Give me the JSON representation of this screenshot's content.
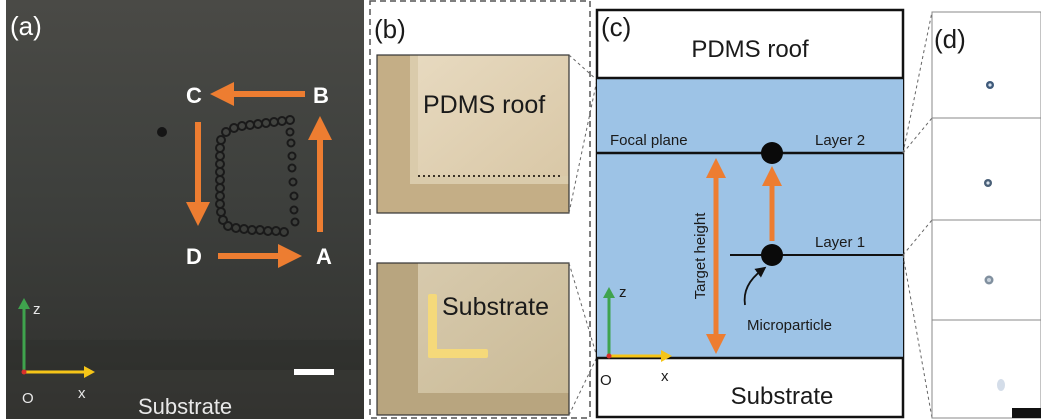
{
  "figure": {
    "panels": {
      "a": {
        "label": "(a)",
        "points": {
          "A": "A",
          "B": "B",
          "C": "C",
          "D": "D"
        },
        "axes": {
          "z": "z",
          "x": "x",
          "origin": "O"
        },
        "substrate": "Substrate"
      },
      "b": {
        "label": "(b)",
        "roof": "PDMS roof",
        "substrate": "Substrate"
      },
      "c": {
        "label": "(c)",
        "roof": "PDMS roof",
        "substrate": "Substrate",
        "focal_plane": "Focal plane",
        "layer2": "Layer 2",
        "layer1": "Layer 1",
        "target_height": "Target height",
        "microparticle": "Microparticle",
        "axes": {
          "z": "z",
          "x": "x",
          "origin": "O"
        }
      },
      "d": {
        "label": "(d)"
      }
    },
    "colors": {
      "orange": "#ed7d31",
      "channel_blue": "#9dc3e6",
      "axis_green": "#3fa34d",
      "axis_yellow": "#f5c518"
    }
  }
}
